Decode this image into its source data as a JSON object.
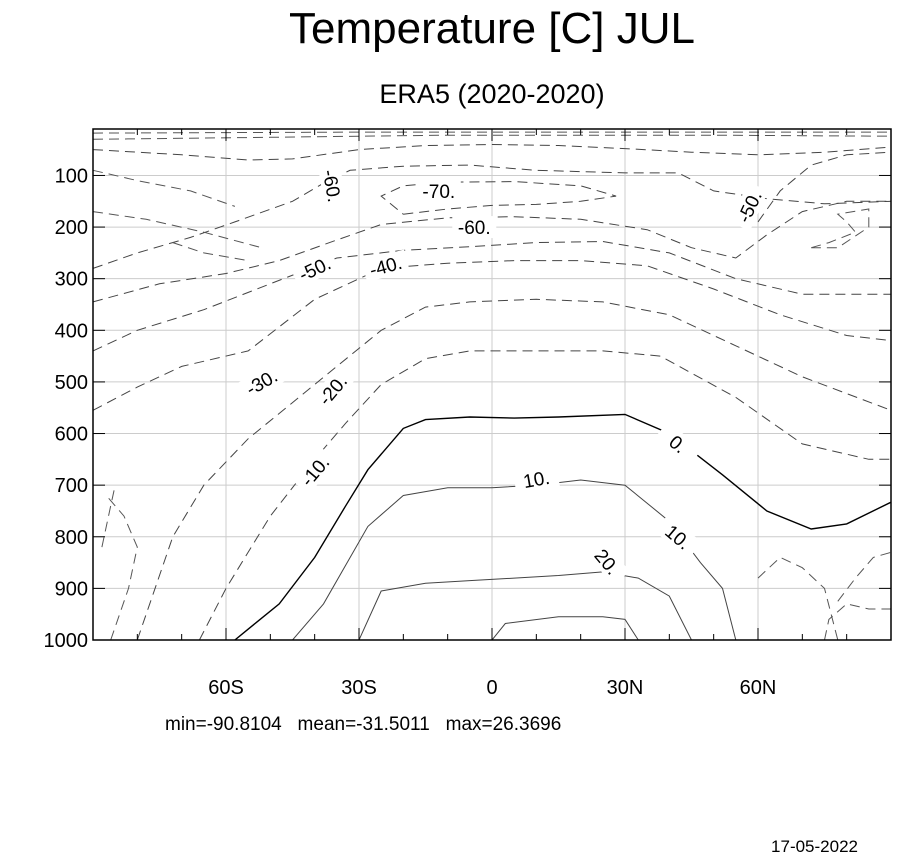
{
  "chart_data": {
    "type": "contour",
    "title": "Temperature [C] JUL",
    "subtitle": "ERA5 (2020-2020)",
    "xlabel": "",
    "ylabel": "",
    "xlim": [
      -90,
      90
    ],
    "ylim": [
      1000,
      10
    ],
    "x_ticks": [
      {
        "value": -60,
        "label": "60S"
      },
      {
        "value": -30,
        "label": "30S"
      },
      {
        "value": 0,
        "label": "0"
      },
      {
        "value": 30,
        "label": "30N"
      },
      {
        "value": 60,
        "label": "60N"
      }
    ],
    "y_ticks": [
      {
        "value": 100,
        "label": "100"
      },
      {
        "value": 200,
        "label": "200"
      },
      {
        "value": 300,
        "label": "300"
      },
      {
        "value": 400,
        "label": "400"
      },
      {
        "value": 500,
        "label": "500"
      },
      {
        "value": 600,
        "label": "600"
      },
      {
        "value": 700,
        "label": "700"
      },
      {
        "value": 800,
        "label": "800"
      },
      {
        "value": 900,
        "label": "900"
      },
      {
        "value": 1000,
        "label": "1000"
      }
    ],
    "grid": true,
    "contours": [
      {
        "level": 20,
        "label": "20.",
        "label_at": [
          26,
          848
        ],
        "label_rot": 50,
        "points": [
          [
            0,
            1000
          ],
          [
            3,
            968
          ],
          [
            15,
            955
          ],
          [
            25,
            955
          ],
          [
            30,
            960
          ],
          [
            33,
            1000
          ]
        ]
      },
      {
        "level": 10,
        "label": "10.",
        "label_at": [
          42,
          800
        ],
        "label_rot": 40,
        "points": [
          [
            -30,
            1000
          ],
          [
            -25,
            905
          ],
          [
            -15,
            890
          ],
          [
            -5,
            885
          ],
          [
            5,
            880
          ],
          [
            15,
            875
          ],
          [
            25,
            868
          ],
          [
            33,
            880
          ],
          [
            40,
            915
          ],
          [
            45,
            1000
          ]
        ]
      },
      {
        "level": 10,
        "label": "10.",
        "label_at": [
          10,
          688
        ],
        "label_rot": -10,
        "points": [
          [
            -45,
            1000
          ],
          [
            -38,
            930
          ],
          [
            -28,
            780
          ],
          [
            -20,
            720
          ],
          [
            -10,
            705
          ],
          [
            0,
            705
          ],
          [
            10,
            700
          ],
          [
            20,
            690
          ],
          [
            30,
            700
          ],
          [
            40,
            770
          ],
          [
            47,
            850
          ],
          [
            52,
            900
          ],
          [
            55,
            1000
          ]
        ]
      },
      {
        "level": 0,
        "label": "0.",
        "label_at": [
          42,
          620
        ],
        "label_rot": 40,
        "points": [
          [
            -58,
            1000
          ],
          [
            -53,
            965
          ],
          [
            -48,
            930
          ],
          [
            -40,
            840
          ],
          [
            -33,
            740
          ],
          [
            -28,
            670
          ],
          [
            -20,
            590
          ],
          [
            -15,
            573
          ],
          [
            -5,
            568
          ],
          [
            5,
            570
          ],
          [
            15,
            568
          ],
          [
            30,
            563
          ],
          [
            40,
            600
          ],
          [
            52,
            680
          ],
          [
            62,
            750
          ],
          [
            72,
            785
          ],
          [
            80,
            775
          ],
          [
            90,
            733
          ]
        ]
      },
      {
        "level": -10,
        "label": "-10.",
        "label_at": [
          -40,
          672
        ],
        "label_rot": -50,
        "points": [
          [
            -66,
            1000
          ],
          [
            -60,
            900
          ],
          [
            -50,
            760
          ],
          [
            -40,
            650
          ],
          [
            -33,
            580
          ],
          [
            -25,
            505
          ],
          [
            -15,
            455
          ],
          [
            -5,
            440
          ],
          [
            5,
            440
          ],
          [
            15,
            440
          ],
          [
            25,
            440
          ],
          [
            38,
            450
          ],
          [
            55,
            530
          ],
          [
            70,
            620
          ],
          [
            85,
            650
          ],
          [
            90,
            650
          ]
        ]
      },
      {
        "level": -20,
        "label": "-20.",
        "label_at": [
          -36,
          515
        ],
        "label_rot": -50,
        "points": [
          [
            -80,
            1000
          ],
          [
            -72,
            800
          ],
          [
            -65,
            700
          ],
          [
            -55,
            610
          ],
          [
            -45,
            540
          ],
          [
            -35,
            470
          ],
          [
            -25,
            400
          ],
          [
            -15,
            355
          ],
          [
            -5,
            345
          ],
          [
            10,
            340
          ],
          [
            25,
            345
          ],
          [
            40,
            370
          ],
          [
            55,
            430
          ],
          [
            70,
            490
          ],
          [
            90,
            555
          ]
        ]
      },
      {
        "level": -30,
        "label": "-30.",
        "label_at": [
          -52,
          500
        ],
        "label_rot": -30,
        "points": [
          [
            -90,
            555
          ],
          [
            -80,
            510
          ],
          [
            -70,
            470
          ],
          [
            -55,
            440
          ],
          [
            -40,
            340
          ],
          [
            -25,
            280
          ],
          [
            -10,
            270
          ],
          [
            5,
            265
          ],
          [
            20,
            265
          ],
          [
            35,
            275
          ],
          [
            50,
            320
          ],
          [
            65,
            370
          ],
          [
            80,
            410
          ],
          [
            90,
            420
          ]
        ]
      },
      {
        "level": -40,
        "label": "-40.",
        "label_at": [
          -24,
          275
        ],
        "label_rot": -15,
        "points": [
          [
            -90,
            440
          ],
          [
            -80,
            400
          ],
          [
            -65,
            360
          ],
          [
            -50,
            310
          ],
          [
            -35,
            260
          ],
          [
            -20,
            245
          ],
          [
            -5,
            238
          ],
          [
            10,
            230
          ],
          [
            25,
            228
          ],
          [
            40,
            250
          ],
          [
            55,
            300
          ],
          [
            70,
            330
          ],
          [
            85,
            330
          ],
          [
            90,
            330
          ]
        ]
      },
      {
        "level": -50,
        "label": "-50.",
        "label_at": [
          -40,
          280
        ],
        "label_rot": -25,
        "points": [
          [
            -90,
            345
          ],
          [
            -75,
            310
          ],
          [
            -60,
            290
          ],
          [
            -48,
            265
          ],
          [
            -35,
            225
          ],
          [
            -25,
            195
          ],
          [
            -10,
            182
          ],
          [
            5,
            180
          ],
          [
            20,
            185
          ],
          [
            35,
            205
          ],
          [
            45,
            240
          ],
          [
            55,
            260
          ],
          [
            62,
            215
          ],
          [
            70,
            170
          ],
          [
            80,
            150
          ],
          [
            90,
            150
          ]
        ]
      },
      {
        "level": -60,
        "label": "-60.",
        "label_at": [
          -4,
          200
        ],
        "label_rot": 0,
        "points": [
          [
            -90,
            280
          ],
          [
            -80,
            250
          ],
          [
            -68,
            220
          ],
          [
            -58,
            190
          ],
          [
            -45,
            150
          ],
          [
            -37,
            110
          ],
          [
            -32,
            90
          ],
          [
            -20,
            82
          ],
          [
            -5,
            80
          ],
          [
            10,
            90
          ],
          [
            30,
            95
          ],
          [
            42,
            95
          ],
          [
            50,
            130
          ],
          [
            62,
            145
          ],
          [
            75,
            155
          ],
          [
            90,
            150
          ]
        ]
      },
      {
        "level": -70,
        "label": "-70.",
        "label_at": [
          -12,
          130
        ],
        "label_rot": 0,
        "points": [
          [
            -20,
            175
          ],
          [
            -10,
            165
          ],
          [
            0,
            158
          ],
          [
            10,
            156
          ],
          [
            20,
            150
          ],
          [
            28,
            140
          ],
          [
            20,
            120
          ],
          [
            5,
            112
          ],
          [
            -10,
            113
          ],
          [
            -20,
            120
          ],
          [
            -25,
            140
          ],
          [
            -20,
            175
          ]
        ]
      },
      {
        "level": -60,
        "label": "-60.",
        "label_at": [
          -36,
          120
        ],
        "label_rot": 80,
        "points": [
          [
            -90,
            50
          ],
          [
            -70,
            60
          ],
          [
            -55,
            70
          ],
          [
            -45,
            68
          ],
          [
            -30,
            50
          ],
          [
            -15,
            42
          ],
          [
            0,
            40
          ],
          [
            15,
            42
          ],
          [
            30,
            48
          ],
          [
            45,
            55
          ],
          [
            60,
            60
          ],
          [
            75,
            55
          ],
          [
            90,
            45
          ]
        ]
      },
      {
        "level": -50,
        "label": "-50.",
        "label_at": [
          58,
          160
        ],
        "label_rot": -65,
        "points": [
          [
            60,
            190
          ],
          [
            65,
            130
          ],
          [
            72,
            80
          ],
          [
            80,
            60
          ],
          [
            90,
            55
          ]
        ]
      }
    ],
    "open_contours": [
      [
        [
          -90,
          30
        ],
        [
          -70,
          28
        ],
        [
          -50,
          26
        ],
        [
          -30,
          24
        ],
        [
          -10,
          22
        ],
        [
          10,
          22
        ],
        [
          30,
          22
        ],
        [
          50,
          22
        ],
        [
          70,
          23
        ],
        [
          90,
          24
        ]
      ],
      [
        [
          -90,
          18
        ],
        [
          -60,
          17
        ],
        [
          -30,
          16
        ],
        [
          0,
          16
        ],
        [
          30,
          16
        ],
        [
          60,
          16
        ],
        [
          90,
          16
        ]
      ],
      [
        [
          -90,
          90
        ],
        [
          -80,
          110
        ],
        [
          -68,
          130
        ],
        [
          -58,
          160
        ]
      ],
      [
        [
          -90,
          170
        ],
        [
          -78,
          185
        ],
        [
          -65,
          210
        ],
        [
          -52,
          240
        ]
      ],
      [
        [
          -72,
          230
        ],
        [
          -65,
          250
        ],
        [
          -55,
          265
        ]
      ],
      [
        [
          72,
          240
        ],
        [
          76,
          230
        ],
        [
          82,
          210
        ],
        [
          80,
          190
        ],
        [
          78,
          175
        ],
        [
          85,
          165
        ],
        [
          85,
          200
        ],
        [
          78,
          240
        ],
        [
          72,
          240
        ]
      ],
      [
        [
          -86,
          1000
        ],
        [
          -82,
          900
        ],
        [
          -80,
          820
        ],
        [
          -83,
          760
        ],
        [
          -87,
          720
        ]
      ],
      [
        [
          -88,
          820
        ],
        [
          -86,
          740
        ],
        [
          -85,
          700
        ]
      ],
      [
        [
          60,
          880
        ],
        [
          65,
          840
        ],
        [
          70,
          860
        ],
        [
          75,
          900
        ],
        [
          78,
          1000
        ]
      ],
      [
        [
          75,
          1000
        ],
        [
          76,
          960
        ],
        [
          80,
          930
        ],
        [
          85,
          940
        ],
        [
          90,
          940
        ]
      ],
      [
        [
          78,
          925
        ],
        [
          82,
          880
        ],
        [
          86,
          840
        ],
        [
          90,
          830
        ]
      ]
    ],
    "stats": {
      "min": "-90.8104",
      "mean": "-31.5011",
      "max": "26.3696"
    }
  },
  "footer": {
    "stats_text": "min=-90.8104   mean=-31.5011   max=26.3696",
    "date": "17-05-2022"
  }
}
